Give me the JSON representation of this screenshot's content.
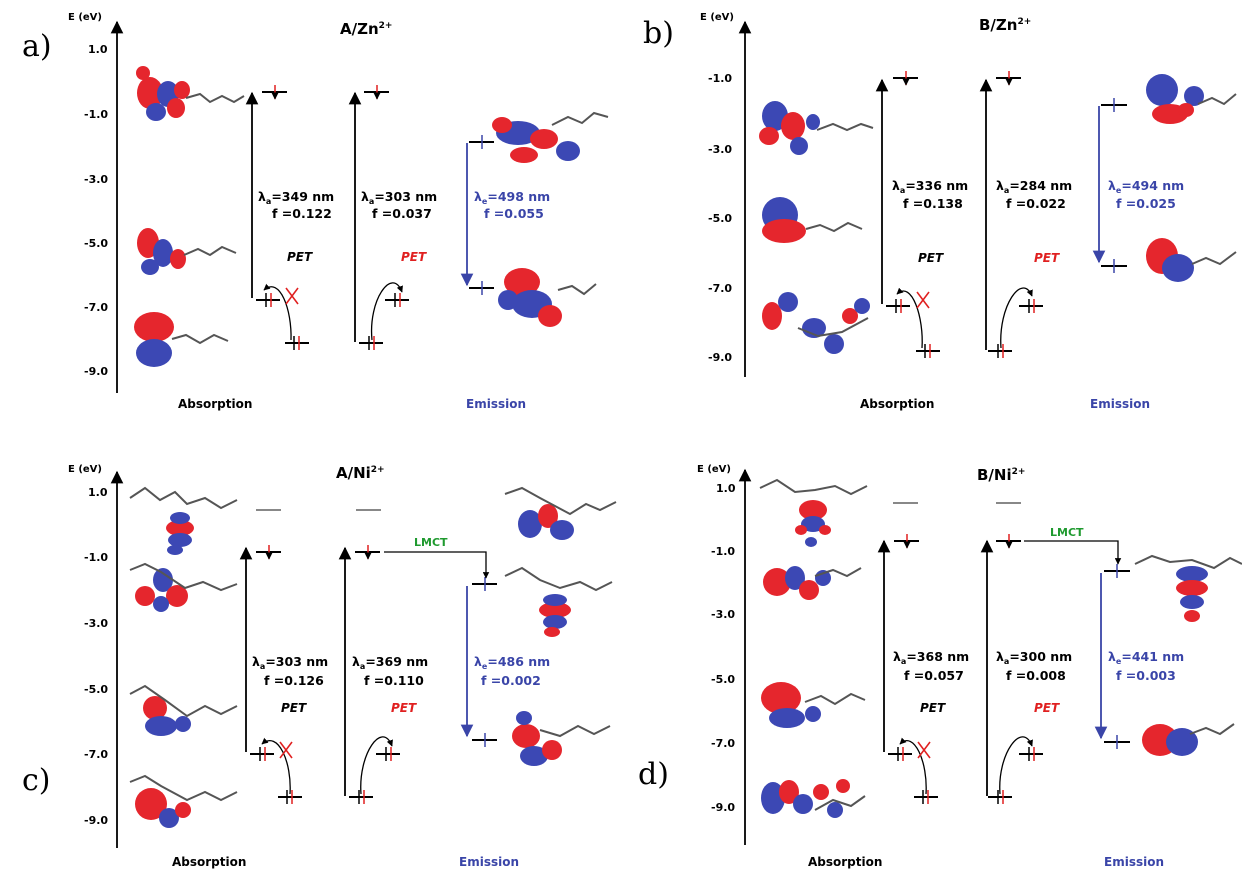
{
  "panels": [
    {
      "id": "a",
      "letter": "a)",
      "title": "A/Zn",
      "title_sup": "2+",
      "axis_label": "E (eV)",
      "ticks": [
        "1.0",
        "-1.0",
        "-3.0",
        "-5.0",
        "-7.0",
        "-9.0"
      ],
      "transitions": [
        {
          "lambda_label": "=349 nm",
          "f_label": "f =0.122"
        },
        {
          "lambda_label": "=303 nm",
          "f_label": "f =0.037"
        },
        {
          "lambda_label": "=498 nm",
          "f_label": "f =0.055"
        }
      ],
      "pet_labels": [
        "PET",
        "PET"
      ],
      "lmct": "",
      "footer_absorption": "Absorption",
      "footer_emission": "Emission"
    },
    {
      "id": "b",
      "letter": "b)",
      "title": "B/Zn",
      "title_sup": "2+",
      "axis_label": "E (eV)",
      "ticks": [
        "-1.0",
        "-3.0",
        "-5.0",
        "-7.0",
        "-9.0"
      ],
      "transitions": [
        {
          "lambda_label": "=336 nm",
          "f_label": "f =0.138"
        },
        {
          "lambda_label": "=284 nm",
          "f_label": "f =0.022"
        },
        {
          "lambda_label": "=494 nm",
          "f_label": "f =0.025"
        }
      ],
      "pet_labels": [
        "PET",
        "PET"
      ],
      "lmct": "",
      "footer_absorption": "Absorption",
      "footer_emission": "Emission"
    },
    {
      "id": "c",
      "letter": "c)",
      "title": "A/Ni",
      "title_sup": "2+",
      "axis_label": "E (eV)",
      "ticks": [
        "1.0",
        "-1.0",
        "-3.0",
        "-5.0",
        "-7.0",
        "-9.0"
      ],
      "transitions": [
        {
          "lambda_label": "=303 nm",
          "f_label": "f =0.126"
        },
        {
          "lambda_label": "=369 nm",
          "f_label": "f =0.110"
        },
        {
          "lambda_label": "=486 nm",
          "f_label": "f =0.002"
        }
      ],
      "pet_labels": [
        "PET",
        "PET"
      ],
      "lmct": "LMCT",
      "footer_absorption": "Absorption",
      "footer_emission": "Emission"
    },
    {
      "id": "d",
      "letter": "d)",
      "title": "B/Ni",
      "title_sup": "2+",
      "axis_label": "E (eV)",
      "ticks": [
        "1.0",
        "-1.0",
        "-3.0",
        "-5.0",
        "-7.0",
        "-9.0"
      ],
      "transitions": [
        {
          "lambda_label": "=368 nm",
          "f_label": "f =0.057"
        },
        {
          "lambda_label": "=300 nm",
          "f_label": "f =0.008"
        },
        {
          "lambda_label": "=441 nm",
          "f_label": "f =0.003"
        }
      ],
      "pet_labels": [
        "PET",
        "PET"
      ],
      "lmct": "LMCT",
      "footer_absorption": "Absorption",
      "footer_emission": "Emission"
    }
  ],
  "colors": {
    "red": "#e02020",
    "blue": "#3a45a8",
    "orbital_red": "#e5262d",
    "orbital_blue": "#3c48b4",
    "lmct_green": "#1f9a2f"
  }
}
